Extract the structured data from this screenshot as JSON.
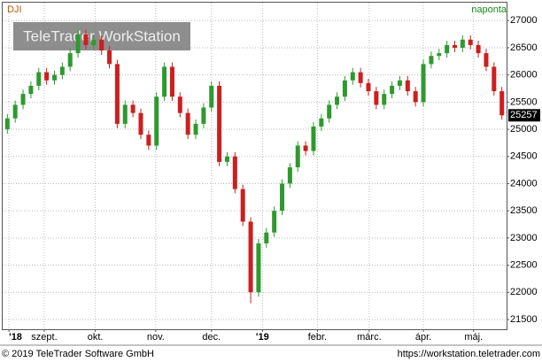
{
  "chart_data": {
    "type": "candlestick",
    "title": "DJI",
    "subtitle": "naponta",
    "watermark": "TeleTrader WorkStation",
    "categories": [
      null,
      null,
      null,
      null,
      null,
      null,
      null,
      null,
      null,
      null,
      null,
      null,
      null,
      null,
      null,
      null,
      null,
      null,
      null,
      null,
      null,
      null,
      null,
      null,
      null,
      null,
      null,
      null,
      null,
      null,
      null,
      null,
      null,
      null,
      null,
      null,
      null,
      null,
      null,
      null,
      null,
      null,
      null,
      null,
      null,
      null,
      null,
      null,
      null,
      null,
      null,
      null,
      null,
      null,
      null,
      null,
      null,
      null,
      null,
      null,
      null,
      null,
      null,
      null
    ],
    "open": [
      25000,
      25200,
      25450,
      25650,
      25800,
      26050,
      25900,
      26000,
      26150,
      26400,
      26750,
      26550,
      26650,
      26450,
      26200,
      25100,
      25450,
      25300,
      24900,
      24700,
      25600,
      26150,
      25600,
      25300,
      24900,
      25100,
      25400,
      25800,
      24400,
      24500,
      23900,
      23300,
      22000,
      22900,
      23100,
      23500,
      24000,
      24300,
      24700,
      24600,
      25050,
      25200,
      25450,
      25600,
      25900,
      26050,
      25850,
      25700,
      25450,
      25650,
      25800,
      25900,
      25700,
      25500,
      26200,
      26350,
      26400,
      26550,
      26500,
      26650,
      26550,
      26400,
      26150,
      25700
    ],
    "high": [
      25280,
      25530,
      25730,
      25880,
      26130,
      26130,
      26080,
      26230,
      26480,
      26830,
      26830,
      26730,
      26730,
      26530,
      26280,
      25530,
      25530,
      25380,
      24980,
      25680,
      26230,
      26230,
      25680,
      25380,
      25180,
      25480,
      25880,
      25880,
      24580,
      24580,
      23980,
      23380,
      22980,
      23180,
      23580,
      24080,
      24380,
      24780,
      24780,
      25130,
      25280,
      25530,
      25680,
      25980,
      26130,
      26130,
      25930,
      25780,
      25730,
      25880,
      25980,
      25980,
      25780,
      26280,
      26430,
      26480,
      26630,
      26630,
      26730,
      26730,
      26630,
      26480,
      26230,
      25780
    ],
    "low": [
      24920,
      25120,
      25370,
      25570,
      25720,
      25820,
      25820,
      25920,
      26070,
      26320,
      26470,
      26470,
      26370,
      26120,
      25020,
      25020,
      25220,
      24820,
      24620,
      24620,
      25520,
      25520,
      25220,
      24820,
      24820,
      25020,
      25320,
      24320,
      24320,
      23820,
      23220,
      21800,
      21920,
      22820,
      23020,
      23420,
      23920,
      24220,
      24520,
      24520,
      24970,
      25120,
      25370,
      25520,
      25820,
      25770,
      25620,
      25370,
      25370,
      25570,
      25720,
      25620,
      25420,
      25420,
      26120,
      26270,
      26320,
      26420,
      26420,
      26470,
      26320,
      26070,
      25620,
      25177
    ],
    "close": [
      25200,
      25450,
      25650,
      25800,
      26050,
      25900,
      26000,
      26150,
      26400,
      26750,
      26550,
      26650,
      26450,
      26200,
      25100,
      25450,
      25300,
      24900,
      24700,
      25600,
      26150,
      25600,
      25300,
      24900,
      25100,
      25400,
      25800,
      24400,
      24500,
      23900,
      23300,
      22000,
      22900,
      23100,
      23500,
      24000,
      24300,
      24700,
      24600,
      25050,
      25200,
      25450,
      25600,
      25900,
      26050,
      25850,
      25700,
      25450,
      25650,
      25800,
      25900,
      25700,
      25500,
      26200,
      26350,
      26400,
      26550,
      26500,
      26650,
      26550,
      26400,
      26150,
      25700,
      25257
    ],
    "up_color": "#2e9a2e",
    "down_color": "#cc1f1f",
    "xlim": [
      -0.6,
      63.6
    ],
    "xticks": [
      {
        "value": 0.2,
        "label": "'18"
      },
      {
        "value": 4.7,
        "label": "szept."
      },
      {
        "value": 11.2,
        "label": "okt."
      },
      {
        "value": 18.9,
        "label": "nov."
      },
      {
        "value": 26,
        "label": "dec."
      },
      {
        "value": 32.5,
        "label": "'19"
      },
      {
        "value": 39.5,
        "label": "febr."
      },
      {
        "value": 46.1,
        "label": "márc."
      },
      {
        "value": 53,
        "label": "ápr."
      },
      {
        "value": 59.4,
        "label": "máj."
      }
    ],
    "ylim": [
      21320,
      27330
    ],
    "yticks": [
      21500,
      22000,
      22500,
      23000,
      23500,
      24000,
      24500,
      25000,
      25500,
      26000,
      26500,
      27000
    ],
    "grid": true
  },
  "footer": {
    "copyright": "© 2019 TeleTrader Software GmbH",
    "url": "https://workstation.teletrader.com"
  }
}
